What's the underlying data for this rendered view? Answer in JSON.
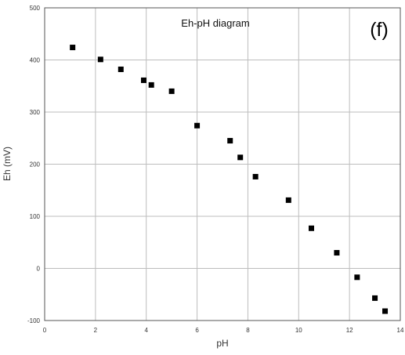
{
  "chart_data": {
    "type": "scatter",
    "title": "Eh-pH diagram",
    "panel_label": "(f)",
    "xlabel": "pH",
    "ylabel": "Eh (mV)",
    "xlim": [
      0,
      14
    ],
    "ylim": [
      -100,
      500
    ],
    "xticks": [
      0,
      2,
      4,
      6,
      8,
      10,
      12,
      14
    ],
    "yticks": [
      -100,
      0,
      100,
      200,
      300,
      400,
      500
    ],
    "grid": true,
    "marker": "square",
    "colors": {
      "marker": "#000000",
      "grid": "#bdbdbd",
      "axis": "#555555"
    },
    "x": [
      1.1,
      2.2,
      3.0,
      3.9,
      4.2,
      5.0,
      6.0,
      7.3,
      7.7,
      8.3,
      9.6,
      10.5,
      11.5,
      12.3,
      13.0,
      13.4
    ],
    "y": [
      424,
      401,
      382,
      361,
      352,
      340,
      274,
      245,
      213,
      176,
      131,
      77,
      30,
      -17,
      -57,
      -82
    ]
  }
}
